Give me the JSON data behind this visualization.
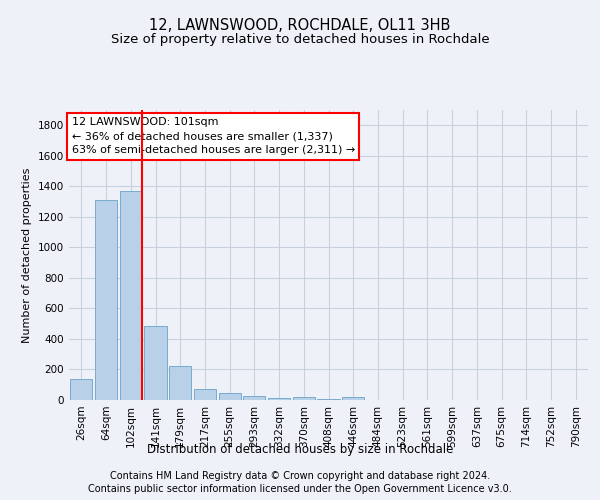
{
  "title1": "12, LAWNSWOOD, ROCHDALE, OL11 3HB",
  "title2": "Size of property relative to detached houses in Rochdale",
  "xlabel": "Distribution of detached houses by size in Rochdale",
  "ylabel": "Number of detached properties",
  "categories": [
    "26sqm",
    "64sqm",
    "102sqm",
    "141sqm",
    "179sqm",
    "217sqm",
    "255sqm",
    "293sqm",
    "332sqm",
    "370sqm",
    "408sqm",
    "446sqm",
    "484sqm",
    "523sqm",
    "561sqm",
    "599sqm",
    "637sqm",
    "675sqm",
    "714sqm",
    "752sqm",
    "790sqm"
  ],
  "values": [
    140,
    1310,
    1370,
    485,
    225,
    75,
    45,
    28,
    15,
    20,
    8,
    20,
    0,
    0,
    0,
    0,
    0,
    0,
    0,
    0,
    0
  ],
  "bar_color": "#b8d0e8",
  "bar_edge_color": "#7aaad0",
  "red_line_bar_index": 2,
  "annotation_title": "12 LAWNSWOOD: 101sqm",
  "annotation_line1": "← 36% of detached houses are smaller (1,337)",
  "annotation_line2": "63% of semi-detached houses are larger (2,311) →",
  "ylim": [
    0,
    1900
  ],
  "yticks": [
    0,
    200,
    400,
    600,
    800,
    1000,
    1200,
    1400,
    1600,
    1800
  ],
  "footer1": "Contains HM Land Registry data © Crown copyright and database right 2024.",
  "footer2": "Contains public sector information licensed under the Open Government Licence v3.0.",
  "bg_color": "#eef2f8",
  "plot_bg_color": "#eef2f8",
  "grid_color": "#c8d0de",
  "title1_fontsize": 10.5,
  "title2_fontsize": 9.5,
  "xlabel_fontsize": 8.5,
  "ylabel_fontsize": 8,
  "tick_fontsize": 7.5,
  "footer_fontsize": 7,
  "annot_fontsize": 8
}
